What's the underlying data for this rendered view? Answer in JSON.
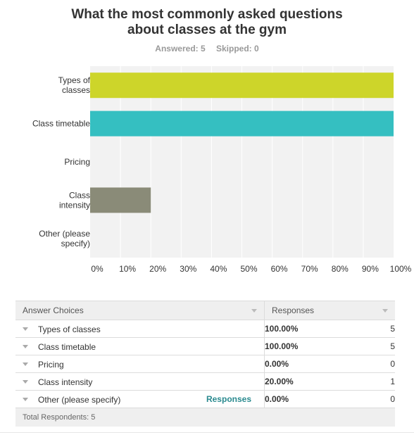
{
  "title_line1": "What the most commonly asked questions",
  "title_line2": "about classes at the gym",
  "answered_label": "Answered: 5",
  "skipped_label": "Skipped: 0",
  "colors": {
    "bar_yellow": "#cdd52a",
    "bar_teal": "#35bfc1",
    "bar_gray": "#8a8b78",
    "plot_bg": "#f2f2f2",
    "grid": "#ffffff"
  },
  "chart_data": {
    "type": "bar",
    "orientation": "horizontal",
    "categories": [
      [
        "Types of",
        "classes"
      ],
      [
        "Class timetable"
      ],
      [
        "Pricing"
      ],
      [
        "Class",
        "intensity"
      ],
      [
        "Other (please",
        "specify)"
      ]
    ],
    "values": [
      100,
      100,
      0,
      20,
      0
    ],
    "bar_colors": [
      "#cdd52a",
      "#35bfc1",
      "#b5b5b5",
      "#8a8b78",
      "#b5b5b5"
    ],
    "xlim": [
      0,
      100
    ],
    "x_ticks": [
      "0%",
      "10%",
      "20%",
      "30%",
      "40%",
      "50%",
      "60%",
      "70%",
      "80%",
      "90%",
      "100%"
    ],
    "grid": true
  },
  "table": {
    "header_choices": "Answer Choices",
    "header_responses": "Responses",
    "rows": [
      {
        "label": "Types of classes",
        "pct": "100.00%",
        "count": "5",
        "link": ""
      },
      {
        "label": "Class timetable",
        "pct": "100.00%",
        "count": "5",
        "link": ""
      },
      {
        "label": "Pricing",
        "pct": "0.00%",
        "count": "0",
        "link": ""
      },
      {
        "label": "Class intensity",
        "pct": "20.00%",
        "count": "1",
        "link": ""
      },
      {
        "label": "Other (please specify)",
        "pct": "0.00%",
        "count": "0",
        "link": "Responses"
      }
    ],
    "total": "Total Respondents: 5"
  }
}
